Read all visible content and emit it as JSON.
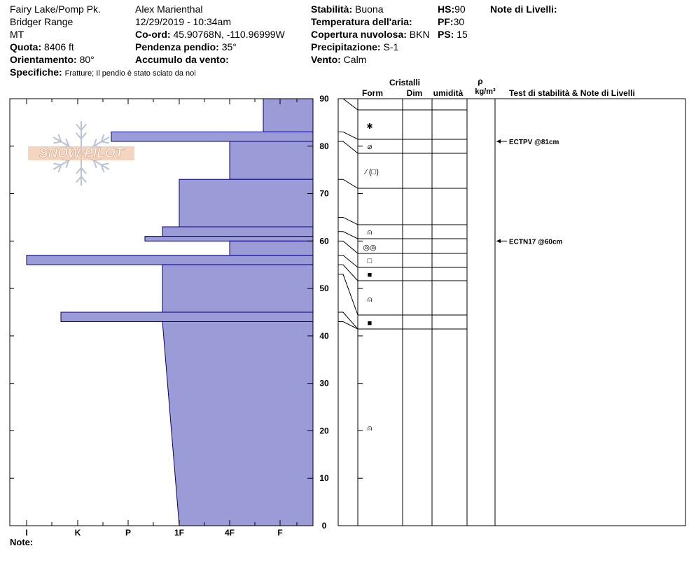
{
  "header": {
    "location": "Fairy Lake/Pomp Pk.",
    "range": "Bridger Range",
    "state": "MT",
    "elevation_label": "Quota:",
    "elevation_value": "8406 ft",
    "aspect_label": "Orientamento:",
    "aspect_value": "80°",
    "specifics_label": "Specifiche:",
    "specifics_value": "Fratture;  Il pendio è stato sciato da noi",
    "observer": "Alex Marienthal",
    "datetime": "12/29/2019 - 10:34am",
    "coord_label": "Co-ord:",
    "coord_value": "45.90768N, -110.96999W",
    "slope_label": "Pendenza pendio:",
    "slope_value": "35°",
    "wind_loading_label": "Accumulo da vento:",
    "wind_loading_value": "",
    "stability_label": "Stabilità:",
    "stability_value": "Buona",
    "air_temp_label": "Temperatura dell'aria:",
    "air_temp_value": "",
    "sky_label": "Copertura nuvolosa:",
    "sky_value": "BKN",
    "precip_label": "Precipitazione:",
    "precip_value": "S-1",
    "wind_label": "Vento:",
    "wind_value": "Calm",
    "hs_label": "HS:",
    "hs_value": "90",
    "pf_label": "PF:",
    "pf_value": "30",
    "ps_label": "PS:",
    "ps_value": "15",
    "layer_notes_label": "Note di Livelli:"
  },
  "logo_text": "SNOW PILOT",
  "columns": {
    "crystals": "Cristalli",
    "form": "Form",
    "size": "Dim",
    "moisture": "umidità",
    "rho": "ρ",
    "density_unit": "kg/m³",
    "tests": "Test di stabilità & Note di Livelli"
  },
  "footer": {
    "notes_label": "Note:"
  },
  "colors": {
    "profile_fill": "#9b9bd7",
    "profile_stroke": "#00007a"
  },
  "chart_data": {
    "type": "area",
    "title": "",
    "ylabel": "",
    "ylim": [
      0,
      90
    ],
    "y_ticks": [
      0,
      10,
      20,
      30,
      40,
      50,
      60,
      70,
      80,
      90
    ],
    "hardness_scale": [
      "I",
      "K",
      "P",
      "1F",
      "4F",
      "F"
    ],
    "hardness_profile": [
      {
        "top": 90,
        "bottom": 83,
        "hardness": "F+"
      },
      {
        "top": 83,
        "bottom": 81,
        "hardness": "P+"
      },
      {
        "top": 81,
        "bottom": 73,
        "hardness": "4F"
      },
      {
        "top": 73,
        "bottom": 63,
        "hardness": "1F"
      },
      {
        "top": 63,
        "bottom": 61,
        "hardness": "1F+"
      },
      {
        "top": 61,
        "bottom": 60,
        "hardness": "P-"
      },
      {
        "top": 60,
        "bottom": 57,
        "hardness": "4F"
      },
      {
        "top": 57,
        "bottom": 55,
        "hardness": "I"
      },
      {
        "top": 55,
        "bottom": 45,
        "hardness": "1F+"
      },
      {
        "top": 45,
        "bottom": 43,
        "hardness": "K+"
      },
      {
        "top": 43,
        "bottom": 0,
        "hardness": "1F+ to 1F"
      }
    ],
    "layer_boundaries": [
      90,
      83,
      81,
      73,
      65,
      62,
      60,
      57,
      55,
      53,
      45,
      43
    ],
    "grain_forms": [
      {
        "depth": 86.5,
        "symbol": "✱"
      },
      {
        "depth": 82,
        "symbol": "⌀"
      },
      {
        "depth": 77.5,
        "symbol": "⁄ (□)"
      },
      {
        "depth": 63.5,
        "symbol": "⍝"
      },
      {
        "depth": 60.5,
        "symbol": "◎◎"
      },
      {
        "depth": 57.5,
        "symbol": "□"
      },
      {
        "depth": 54.5,
        "symbol": "■"
      },
      {
        "depth": 49,
        "symbol": "⍝"
      },
      {
        "depth": 43.5,
        "symbol": "■"
      },
      {
        "depth": 21,
        "symbol": "⍝"
      }
    ],
    "stability_tests": [
      {
        "depth": 81,
        "label": "ECTPV @81cm"
      },
      {
        "depth": 60,
        "label": "ECTN17 @60cm"
      }
    ]
  }
}
